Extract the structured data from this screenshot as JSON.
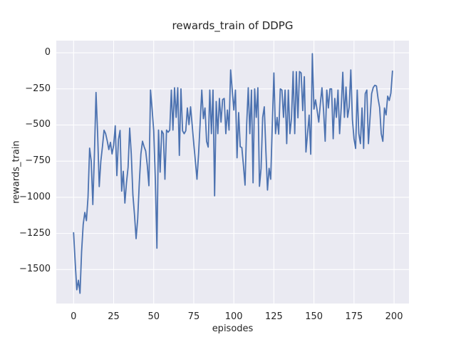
{
  "title": "rewards_train of DDPG",
  "x_axis": {
    "label": "episodes",
    "ticks": [
      {
        "v": 0,
        "label": "0"
      },
      {
        "v": 25,
        "label": "25"
      },
      {
        "v": 50,
        "label": "50"
      },
      {
        "v": 75,
        "label": "75"
      },
      {
        "v": 100,
        "label": "100"
      },
      {
        "v": 125,
        "label": "125"
      },
      {
        "v": 150,
        "label": "150"
      },
      {
        "v": 175,
        "label": "175"
      },
      {
        "v": 200,
        "label": "200"
      }
    ]
  },
  "y_axis": {
    "label": "rewards_train",
    "ticks": [
      {
        "v": 0,
        "label": "0"
      },
      {
        "v": -250,
        "label": "−250"
      },
      {
        "v": -500,
        "label": "−500"
      },
      {
        "v": -750,
        "label": "−750"
      },
      {
        "v": -1000,
        "label": "−1000"
      },
      {
        "v": -1250,
        "label": "−1250"
      },
      {
        "v": -1500,
        "label": "−1500"
      }
    ]
  },
  "colors": {
    "line": "#4c72b0",
    "plot_background": "#eaeaf2",
    "grid": "#ffffff",
    "text": "#262626",
    "figure_background": "#ffffff"
  },
  "chart_data": {
    "type": "line",
    "title": "rewards_train of DDPG",
    "xlabel": "episodes",
    "ylabel": "rewards_train",
    "x_start": 0,
    "x_step": 1,
    "xlim": [
      -10.8,
      209.3
    ],
    "ylim": [
      -1735,
      84
    ],
    "grid": true,
    "legend": false,
    "series_name": "rewards_train of DDPG",
    "values": [
      -1245,
      -1450,
      -1640,
      -1574,
      -1664,
      -1376,
      -1187,
      -1105,
      -1162,
      -1000,
      -660,
      -750,
      -1050,
      -700,
      -275,
      -560,
      -926,
      -750,
      -650,
      -536,
      -560,
      -610,
      -670,
      -620,
      -700,
      -640,
      -505,
      -850,
      -600,
      -537,
      -957,
      -820,
      -1040,
      -900,
      -793,
      -521,
      -700,
      -982,
      -1120,
      -1286,
      -1150,
      -900,
      -700,
      -612,
      -650,
      -680,
      -780,
      -920,
      -258,
      -390,
      -540,
      -875,
      -1352,
      -535,
      -826,
      -540,
      -560,
      -875,
      -535,
      -550,
      -535,
      -258,
      -535,
      -242,
      -447,
      -242,
      -710,
      -250,
      -540,
      -560,
      -540,
      -382,
      -497,
      -374,
      -500,
      -629,
      -750,
      -875,
      -700,
      -480,
      -258,
      -456,
      -382,
      -613,
      -653,
      -258,
      -560,
      -258,
      -990,
      -337,
      -560,
      -316,
      -480,
      -324,
      -316,
      -560,
      -396,
      -535,
      -119,
      -258,
      -396,
      -258,
      -727,
      -414,
      -650,
      -656,
      -780,
      -916,
      -500,
      -242,
      -560,
      -258,
      -900,
      -250,
      -447,
      -242,
      -924,
      -800,
      -447,
      -374,
      -678,
      -950,
      -800,
      -875,
      -500,
      -140,
      -560,
      -447,
      -563,
      -250,
      -258,
      -447,
      -258,
      -629,
      -258,
      -560,
      -450,
      -130,
      -560,
      -131,
      -450,
      -130,
      -140,
      -400,
      -166,
      -687,
      -560,
      -431,
      -702,
      -6,
      -390,
      -326,
      -400,
      -480,
      -350,
      -242,
      -400,
      -612,
      -258,
      -382,
      -250,
      -250,
      -595,
      -316,
      -447,
      -258,
      -560,
      -382,
      -135,
      -447,
      -237,
      -447,
      -374,
      -119,
      -462,
      -595,
      -662,
      -258,
      -560,
      -629,
      -382,
      -662,
      -283,
      -258,
      -629,
      -450,
      -283,
      -240,
      -225,
      -230,
      -316,
      -380,
      -560,
      -613,
      -382,
      -430,
      -300,
      -330,
      -280,
      -127
    ]
  }
}
